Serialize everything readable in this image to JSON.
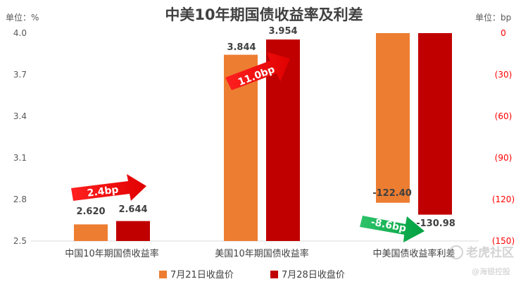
{
  "chart_data": {
    "type": "bar",
    "title": "中美10年期国债收益率及利差",
    "left_axis": {
      "unit_label": "单位：%",
      "range": [
        2.5,
        4.0
      ],
      "ticks": [
        "4.0",
        "3.7",
        "3.4",
        "3.1",
        "2.8",
        "2.5"
      ],
      "tick_values": [
        4.0,
        3.7,
        3.4,
        3.1,
        2.8,
        2.5
      ]
    },
    "right_axis": {
      "unit_label": "单位：bp",
      "range": [
        -150,
        0
      ],
      "ticks": [
        "0",
        "(30)",
        "(60)",
        "(90)",
        "(120)",
        "(150)"
      ],
      "tick_values": [
        0,
        -30,
        -60,
        -90,
        -120,
        -150
      ],
      "color": "#ff0000"
    },
    "categories": [
      "中国10年期国债收益率",
      "美国10年期国债收益率",
      "中美国债收益率利差"
    ],
    "series": [
      {
        "name": "7月21日收盘价",
        "color": "#ed7d31",
        "values": [
          2.62,
          3.844,
          -122.4
        ],
        "labels": [
          "2.620",
          "3.844",
          "-122.40"
        ]
      },
      {
        "name": "7月28日收盘价",
        "color": "#c00000",
        "values": [
          2.644,
          3.954,
          -130.98
        ],
        "labels": [
          "2.644",
          "3.954",
          "-130.98"
        ]
      }
    ],
    "annotations": [
      {
        "text": "2.4bp",
        "color": "#ff0000"
      },
      {
        "text": "11.0bp",
        "color": "#ff0000"
      },
      {
        "text": "-8.6bp",
        "color": "#00b050"
      }
    ],
    "legend_position": "bottom",
    "grid": false
  },
  "watermark": {
    "text": "老虎社区",
    "subtext": "@海银控股"
  }
}
